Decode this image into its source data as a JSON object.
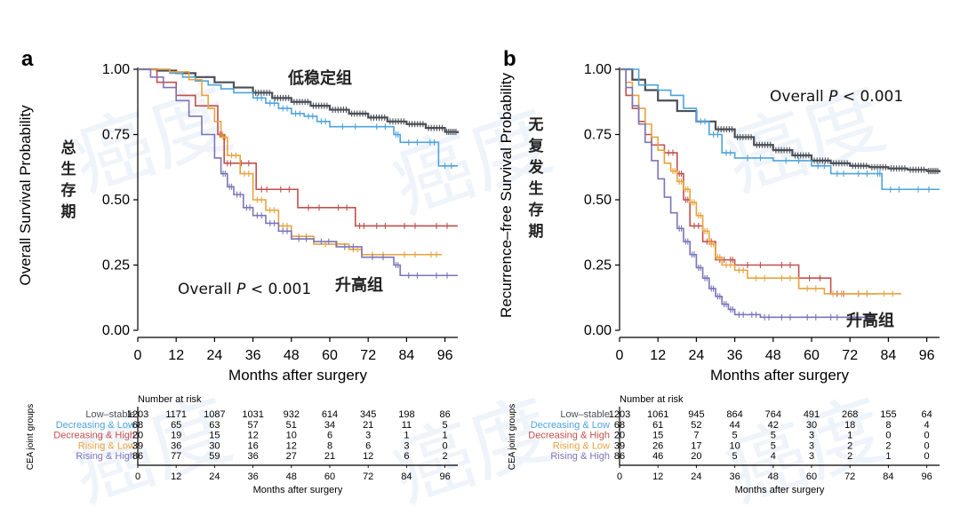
{
  "watermark_text": "癌度",
  "risk_table_side_label": "CEA joint groups",
  "risk_table_title": "Number at risk",
  "risk_table_xlabel": "Months after surgery",
  "groups": [
    {
      "name": "Low–stable",
      "color": "#4a4f57"
    },
    {
      "name": "Decreasing & Low",
      "color": "#4ea3dc"
    },
    {
      "name": "Decreasing & High",
      "color": "#c0504d"
    },
    {
      "name": "Rising & Low",
      "color": "#e8a33d"
    },
    {
      "name": "Rising & High",
      "color": "#7b74b8"
    }
  ],
  "chart_data": [
    {
      "panel": "a",
      "type": "line",
      "xlabel": "Months after surgery",
      "ylabel": "Overall Survival Probability",
      "side_label_cn": [
        "总",
        "生",
        "存",
        "期"
      ],
      "xlim": [
        0,
        100
      ],
      "ylim": [
        0,
        1
      ],
      "xticks": [
        0,
        12,
        24,
        36,
        48,
        60,
        72,
        84,
        96
      ],
      "yticks": [
        "0.00",
        "0.25",
        "0.50",
        "0.75",
        "1.00"
      ],
      "annotation_p": {
        "prefix": "Overall ",
        "italic": "P",
        "suffix": " < 0.001"
      },
      "annotation_top": "低稳定组",
      "annotation_bottom": "升高组",
      "series": [
        {
          "name": "Low–stable",
          "x": [
            0,
            6,
            12,
            18,
            24,
            30,
            36,
            42,
            48,
            54,
            60,
            66,
            72,
            78,
            84,
            90,
            96,
            100
          ],
          "y": [
            1.0,
            0.995,
            0.985,
            0.97,
            0.95,
            0.93,
            0.91,
            0.89,
            0.875,
            0.86,
            0.845,
            0.83,
            0.815,
            0.8,
            0.79,
            0.775,
            0.76,
            0.755
          ]
        },
        {
          "name": "Decreasing & Low",
          "x": [
            0,
            10,
            14,
            18,
            22,
            26,
            30,
            36,
            40,
            44,
            48,
            52,
            56,
            60,
            72,
            80,
            82,
            90,
            94,
            100
          ],
          "y": [
            1.0,
            0.985,
            0.97,
            0.955,
            0.94,
            0.925,
            0.91,
            0.89,
            0.87,
            0.85,
            0.83,
            0.82,
            0.8,
            0.78,
            0.78,
            0.75,
            0.72,
            0.72,
            0.63,
            0.63
          ]
        },
        {
          "name": "Decreasing & High",
          "x": [
            0,
            6,
            12,
            16,
            18,
            22,
            25,
            27,
            30,
            37,
            42,
            50,
            60,
            68,
            72,
            80,
            90,
            100
          ],
          "y": [
            1.0,
            0.95,
            0.9,
            0.9,
            0.86,
            0.86,
            0.75,
            0.64,
            0.64,
            0.54,
            0.54,
            0.47,
            0.47,
            0.4,
            0.4,
            0.4,
            0.4,
            0.4
          ]
        },
        {
          "name": "Rising & Low",
          "x": [
            0,
            10,
            16,
            20,
            22,
            24,
            26,
            28,
            32,
            36,
            40,
            44,
            48,
            55,
            66,
            70,
            80,
            90,
            95
          ],
          "y": [
            1.0,
            0.99,
            0.96,
            0.9,
            0.85,
            0.8,
            0.74,
            0.67,
            0.6,
            0.5,
            0.46,
            0.4,
            0.36,
            0.33,
            0.31,
            0.29,
            0.29,
            0.29,
            0.29
          ]
        },
        {
          "name": "Rising & High",
          "x": [
            0,
            4,
            8,
            12,
            16,
            20,
            24,
            26,
            28,
            30,
            33,
            36,
            40,
            44,
            48,
            55,
            62,
            70,
            80,
            82,
            90,
            100
          ],
          "y": [
            1.0,
            0.97,
            0.93,
            0.88,
            0.82,
            0.75,
            0.66,
            0.6,
            0.55,
            0.52,
            0.47,
            0.44,
            0.41,
            0.38,
            0.35,
            0.34,
            0.32,
            0.28,
            0.25,
            0.21,
            0.21,
            0.21
          ]
        }
      ]
    },
    {
      "panel": "b",
      "type": "line",
      "xlabel": "Months after surgery",
      "ylabel": "Recurrence–free Survival Probability",
      "side_label_cn": [
        "无",
        "复",
        "发",
        "生",
        "存",
        "期"
      ],
      "xlim": [
        0,
        100
      ],
      "ylim": [
        0,
        1
      ],
      "xticks": [
        0,
        12,
        24,
        36,
        48,
        60,
        72,
        84,
        96
      ],
      "yticks": [
        "0.00",
        "0.25",
        "0.50",
        "0.75",
        "1.00"
      ],
      "annotation_p": {
        "prefix": "Overall ",
        "italic": "P",
        "suffix": " < 0.001"
      },
      "annotation_bottom": "升高组",
      "series": [
        {
          "name": "Low–stable",
          "x": [
            0,
            4,
            8,
            12,
            18,
            24,
            30,
            36,
            42,
            48,
            54,
            60,
            66,
            72,
            78,
            84,
            90,
            96,
            100
          ],
          "y": [
            1.0,
            0.96,
            0.92,
            0.88,
            0.84,
            0.8,
            0.77,
            0.74,
            0.71,
            0.69,
            0.67,
            0.65,
            0.64,
            0.63,
            0.625,
            0.62,
            0.615,
            0.61,
            0.605
          ]
        },
        {
          "name": "Decreasing & Low",
          "x": [
            0,
            6,
            12,
            16,
            20,
            24,
            28,
            32,
            36,
            48,
            60,
            66,
            72,
            80,
            82,
            90,
            100
          ],
          "y": [
            1.0,
            0.94,
            0.92,
            0.9,
            0.85,
            0.8,
            0.75,
            0.68,
            0.66,
            0.65,
            0.63,
            0.6,
            0.6,
            0.6,
            0.54,
            0.54,
            0.54
          ]
        },
        {
          "name": "Decreasing & High",
          "x": [
            0,
            2,
            4,
            6,
            8,
            10,
            12,
            14,
            18,
            20,
            22,
            26,
            30,
            34,
            36,
            48,
            56,
            66,
            72,
            80
          ],
          "y": [
            1.0,
            0.9,
            0.85,
            0.8,
            0.75,
            0.71,
            0.71,
            0.68,
            0.6,
            0.5,
            0.4,
            0.34,
            0.27,
            0.27,
            0.25,
            0.25,
            0.2,
            0.14,
            0.14,
            0.14
          ]
        },
        {
          "name": "Rising & Low",
          "x": [
            0,
            2,
            4,
            6,
            8,
            10,
            12,
            14,
            16,
            18,
            20,
            22,
            24,
            26,
            28,
            30,
            32,
            36,
            40,
            48,
            56,
            64,
            72,
            80,
            88
          ],
          "y": [
            1.0,
            0.95,
            0.9,
            0.85,
            0.79,
            0.74,
            0.69,
            0.64,
            0.61,
            0.57,
            0.54,
            0.49,
            0.44,
            0.38,
            0.33,
            0.28,
            0.25,
            0.23,
            0.2,
            0.2,
            0.16,
            0.14,
            0.14,
            0.14,
            0.14
          ]
        },
        {
          "name": "Rising & High",
          "x": [
            0,
            2,
            4,
            6,
            8,
            10,
            12,
            14,
            16,
            18,
            20,
            22,
            24,
            26,
            28,
            30,
            32,
            34,
            36,
            40,
            44,
            48,
            56,
            64,
            70,
            80
          ],
          "y": [
            1.0,
            0.93,
            0.86,
            0.79,
            0.72,
            0.65,
            0.58,
            0.51,
            0.45,
            0.39,
            0.34,
            0.29,
            0.24,
            0.2,
            0.16,
            0.13,
            0.1,
            0.08,
            0.06,
            0.06,
            0.05,
            0.05,
            0.05,
            0.05,
            0.05,
            0.05
          ]
        }
      ]
    }
  ],
  "risk_tables": [
    {
      "panel": "a",
      "times": [
        "0",
        "12",
        "24",
        "36",
        "48",
        "60",
        "72",
        "84",
        "96"
      ],
      "rows": [
        [
          "1203",
          "1171",
          "1087",
          "1031",
          "932",
          "614",
          "345",
          "198",
          "86"
        ],
        [
          "68",
          "65",
          "63",
          "57",
          "51",
          "34",
          "21",
          "11",
          "5"
        ],
        [
          "20",
          "19",
          "15",
          "12",
          "10",
          "6",
          "3",
          "1",
          "1"
        ],
        [
          "39",
          "36",
          "30",
          "16",
          "12",
          "8",
          "6",
          "3",
          "0"
        ],
        [
          "86",
          "77",
          "59",
          "36",
          "27",
          "21",
          "12",
          "6",
          "2"
        ]
      ]
    },
    {
      "panel": "b",
      "times": [
        "0",
        "12",
        "24",
        "36",
        "48",
        "60",
        "72",
        "84",
        "96"
      ],
      "rows": [
        [
          "1203",
          "1061",
          "945",
          "864",
          "764",
          "491",
          "268",
          "155",
          "64"
        ],
        [
          "68",
          "61",
          "52",
          "44",
          "42",
          "30",
          "18",
          "8",
          "4"
        ],
        [
          "20",
          "15",
          "7",
          "5",
          "5",
          "3",
          "1",
          "0",
          "0"
        ],
        [
          "39",
          "26",
          "17",
          "10",
          "5",
          "3",
          "2",
          "2",
          "0"
        ],
        [
          "86",
          "46",
          "20",
          "5",
          "4",
          "3",
          "2",
          "1",
          "0"
        ]
      ]
    }
  ]
}
